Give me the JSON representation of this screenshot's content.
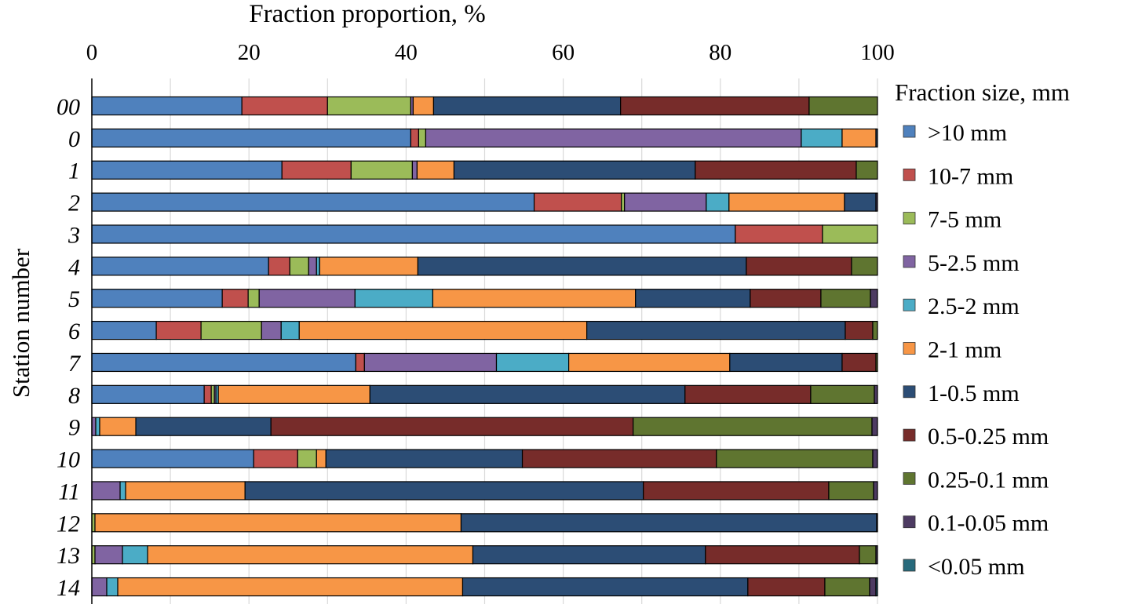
{
  "chart_data": {
    "type": "bar",
    "orientation": "horizontal",
    "stacked": true,
    "title": "",
    "xlabel": "Fraction proportion, %",
    "ylabel": "Station number",
    "xlim": [
      0,
      100
    ],
    "xticks": [
      "0",
      "20",
      "40",
      "60",
      "80",
      "100"
    ],
    "xtick_values": [
      0,
      20,
      40,
      60,
      80,
      100
    ],
    "grid": true,
    "legend_title": "Fraction size, mm",
    "legend_position": "right",
    "categories": [
      "00",
      "0",
      "1",
      "2",
      "3",
      "4",
      "5",
      "6",
      "7",
      "8",
      "9",
      "10",
      "11",
      "12",
      "13",
      "14"
    ],
    "series": [
      {
        "name": ">10 mm",
        "color": "#4f81bd",
        "values": [
          19.1,
          40.6,
          24.2,
          56.3,
          81.9,
          22.5,
          16.6,
          8.2,
          33.6,
          14.3,
          0,
          20.6,
          0,
          0,
          0,
          0
        ]
      },
      {
        "name": "10-7 mm",
        "color": "#c0504d",
        "values": [
          10.9,
          1.0,
          8.8,
          11.1,
          11.1,
          2.7,
          3.3,
          5.7,
          1.1,
          0.9,
          0,
          5.6,
          0,
          0,
          0,
          0
        ]
      },
      {
        "name": "7-5 mm",
        "color": "#9bbb59",
        "values": [
          10.6,
          0.9,
          7.8,
          0.4,
          7.0,
          2.4,
          1.4,
          7.7,
          0,
          0.4,
          0,
          2.4,
          0,
          0.4,
          0.4,
          0
        ]
      },
      {
        "name": "5-2.5 mm",
        "color": "#8064a2",
        "values": [
          0.3,
          47.8,
          0.6,
          10.4,
          0,
          1.0,
          12.2,
          2.5,
          16.8,
          0.2,
          0.5,
          0,
          3.6,
          0,
          3.5,
          1.9
        ]
      },
      {
        "name": "2.5-2 mm",
        "color": "#4bacc6",
        "values": [
          0,
          5.2,
          0,
          2.9,
          0,
          0.4,
          9.9,
          2.3,
          9.2,
          0.3,
          0.5,
          0,
          0.7,
          0,
          3.2,
          1.4
        ]
      },
      {
        "name": "2-1 mm",
        "color": "#f79646",
        "values": [
          2.6,
          4.3,
          4.7,
          14.7,
          0,
          12.5,
          25.8,
          36.6,
          20.5,
          19.3,
          4.6,
          1.2,
          15.2,
          46.6,
          41.4,
          43.9
        ]
      },
      {
        "name": "1-0.5 mm",
        "color": "#2c4d75",
        "values": [
          23.8,
          0.2,
          30.7,
          4.0,
          0,
          41.8,
          14.6,
          32.9,
          14.3,
          40.1,
          17.2,
          25.0,
          50.7,
          52.9,
          29.6,
          36.3
        ]
      },
      {
        "name": "0.5-0.25 mm",
        "color": "#772c2a",
        "values": [
          24.0,
          0,
          20.5,
          0,
          0,
          13.4,
          9.0,
          3.5,
          4.3,
          16.0,
          46.1,
          24.7,
          23.6,
          0,
          19.6,
          9.8
        ]
      },
      {
        "name": "0.25-0.1 mm",
        "color": "#5f7530",
        "values": [
          8.7,
          0,
          2.7,
          0,
          0,
          3.3,
          6.3,
          0.6,
          0.2,
          8.1,
          30.4,
          19.9,
          5.7,
          0,
          2.1,
          5.7
        ]
      },
      {
        "name": "0.1-0.05 mm",
        "color": "#4d3b62",
        "values": [
          0,
          0,
          0,
          0.2,
          0,
          0,
          0.9,
          0,
          0,
          0.4,
          0.7,
          0.6,
          0.5,
          0.1,
          0.2,
          0.8
        ]
      },
      {
        "name": "<0.05 mm",
        "color": "#276a7c",
        "values": [
          0,
          0,
          0,
          0,
          0,
          0,
          0,
          0,
          0,
          0,
          0,
          0,
          0,
          0,
          0,
          0.2
        ]
      }
    ]
  }
}
